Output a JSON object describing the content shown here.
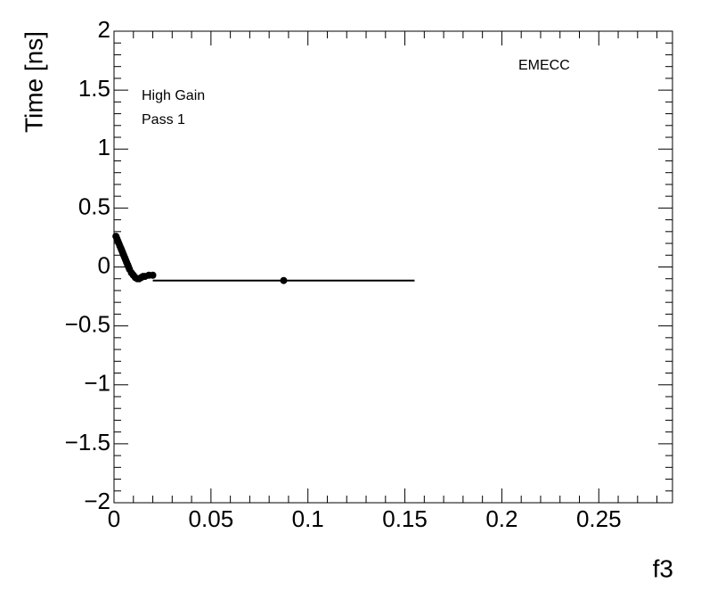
{
  "chart_data": {
    "type": "scatter",
    "x_label": "f3",
    "y_label": "Time [ns]",
    "annotations": [
      "High Gain",
      "Pass 1",
      "EMECC"
    ],
    "color": "#000000",
    "x": [
      0.001,
      0.0015,
      0.002,
      0.0025,
      0.003,
      0.0035,
      0.004,
      0.0045,
      0.005,
      0.0055,
      0.006,
      0.0065,
      0.007,
      0.0075,
      0.008,
      0.009,
      0.01,
      0.011,
      0.012,
      0.013,
      0.014,
      0.015,
      0.016,
      0.018,
      0.02,
      0.0875
    ],
    "values": [
      0.26,
      0.24,
      0.22,
      0.2,
      0.18,
      0.16,
      0.14,
      0.12,
      0.1,
      0.08,
      0.06,
      0.04,
      0.02,
      0.0,
      -0.02,
      -0.05,
      -0.07,
      -0.09,
      -0.1,
      -0.1,
      -0.09,
      -0.08,
      -0.08,
      -0.07,
      -0.07,
      -0.115
    ],
    "xerr": [
      null,
      null,
      null,
      null,
      null,
      null,
      null,
      null,
      null,
      null,
      null,
      null,
      null,
      null,
      null,
      null,
      null,
      null,
      null,
      null,
      null,
      null,
      null,
      null,
      null,
      0.0675
    ],
    "xlim": [
      0,
      0.288
    ],
    "ylim": [
      -2,
      2
    ],
    "xticks": [
      0,
      0.05,
      0.1,
      0.15,
      0.2,
      0.25
    ],
    "yticks": [
      {
        "value": -2,
        "label": "−2"
      },
      {
        "value": -1.5,
        "label": "−1.5"
      },
      {
        "value": -1,
        "label": "−1"
      },
      {
        "value": -0.5,
        "label": "−0.5"
      },
      0,
      0.5,
      1,
      1.5,
      2
    ],
    "xminorticks": [
      0.01,
      0.02,
      0.03,
      0.04,
      0.06,
      0.07,
      0.08,
      0.09,
      0.11,
      0.12,
      0.13,
      0.14,
      0.16,
      0.17,
      0.18,
      0.19,
      0.21,
      0.22,
      0.23,
      0.24,
      0.26,
      0.27,
      0.28
    ],
    "yminorticks": [
      -1.9,
      -1.8,
      -1.7,
      -1.6,
      -1.4,
      -1.3,
      -1.2,
      -1.1,
      -0.9,
      -0.8,
      -0.7,
      -0.6,
      -0.4,
      -0.3,
      -0.2,
      -0.1,
      0.1,
      0.2,
      0.3,
      0.4,
      0.6,
      0.7,
      0.8,
      0.9,
      1.1,
      1.2,
      1.3,
      1.4,
      1.6,
      1.7,
      1.8,
      1.9
    ]
  }
}
